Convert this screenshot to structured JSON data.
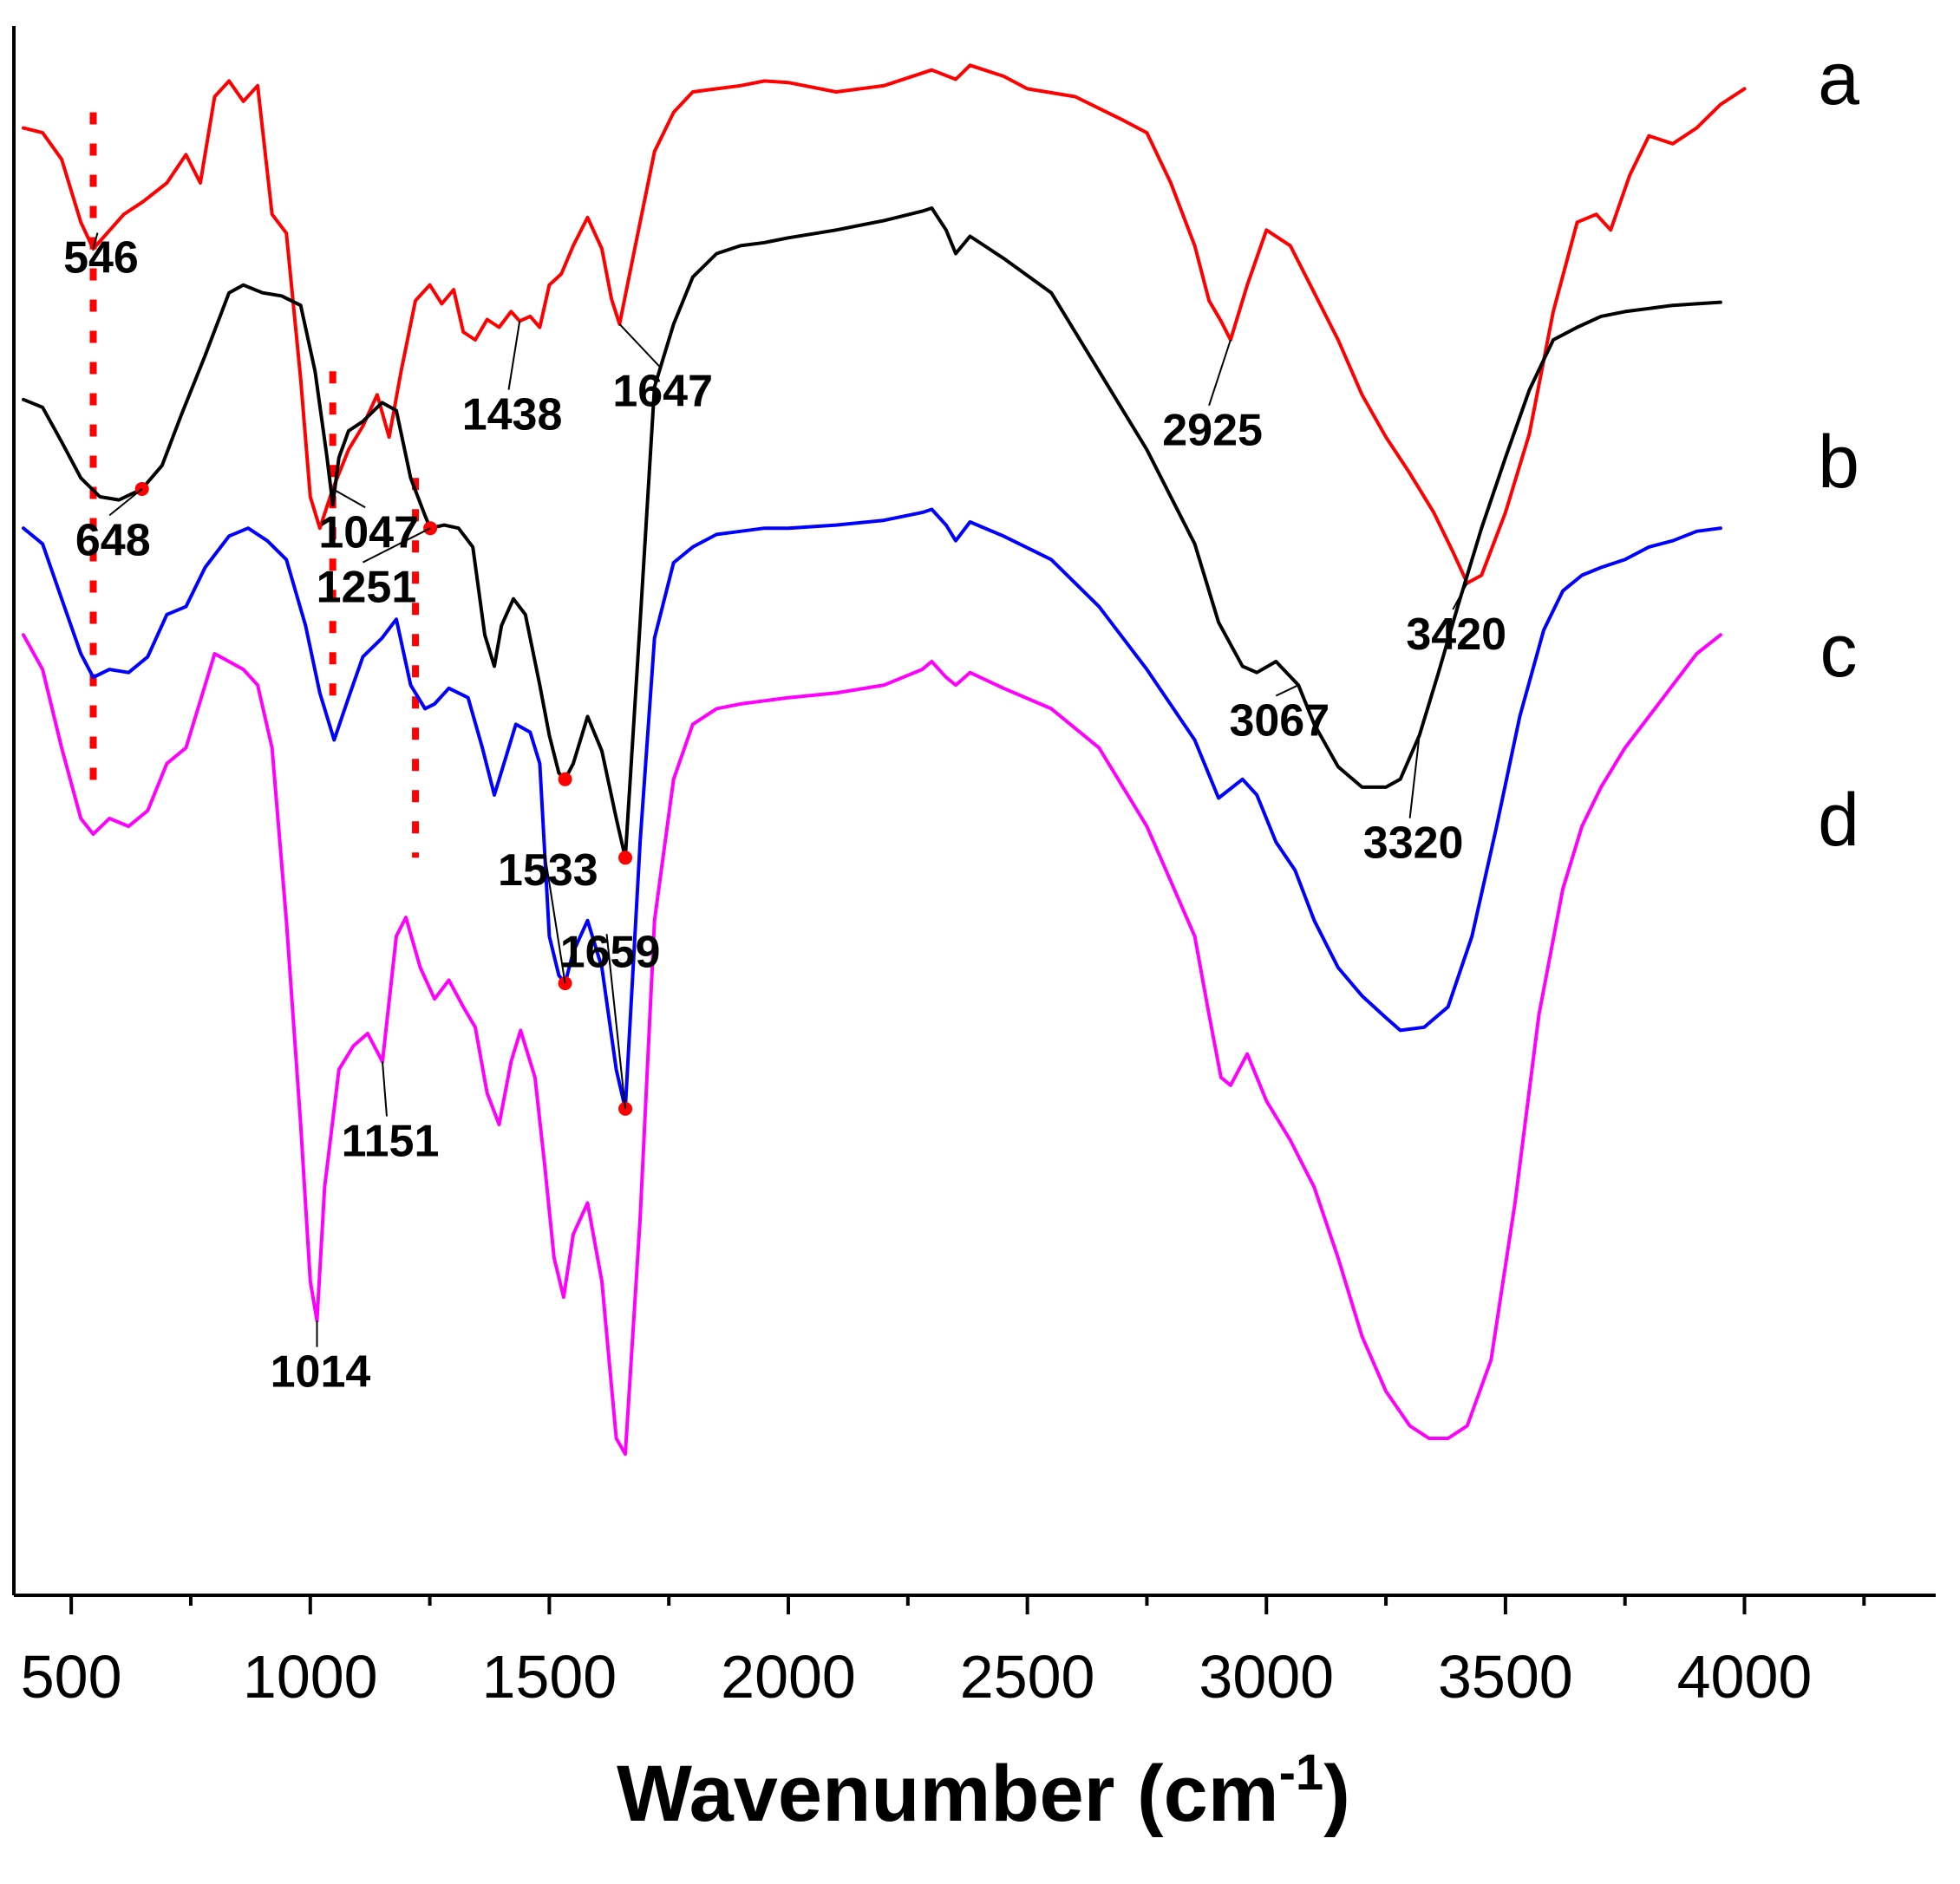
{
  "chart_data": {
    "type": "line",
    "title": "",
    "xlabel": "Wavenumber (cm",
    "xlabel_superscript": "-1",
    "xlabel_close": ")",
    "ylabel": "",
    "xlim": [
      380,
      4400
    ],
    "x_ticks": [
      500,
      1000,
      1500,
      2000,
      2500,
      3000,
      3500,
      4000
    ],
    "x_ticks_minor": [
      750,
      1250,
      1750,
      2250,
      2750,
      3250,
      3750,
      4250
    ],
    "ylim": [
      0,
      1
    ],
    "y_axis_visible": true,
    "y_ticks": [],
    "legend": "series letters at right",
    "series": [
      {
        "name": "a",
        "color": "#ff0000",
        "x": [
          400,
          440,
          480,
          520,
          546,
          575,
          610,
          650,
          700,
          740,
          770,
          800,
          830,
          860,
          890,
          920,
          950,
          980,
          1000,
          1020,
          1047,
          1080,
          1110,
          1140,
          1165,
          1190,
          1220,
          1250,
          1275,
          1300,
          1320,
          1345,
          1370,
          1395,
          1420,
          1438,
          1460,
          1480,
          1500,
          1525,
          1550,
          1580,
          1610,
          1630,
          1647,
          1680,
          1720,
          1760,
          1800,
          1850,
          1900,
          1950,
          2000,
          2100,
          2200,
          2300,
          2350,
          2380,
          2450,
          2500,
          2600,
          2700,
          2750,
          2800,
          2850,
          2880,
          2905,
          2925,
          2960,
          3000,
          3050,
          3100,
          3150,
          3200,
          3250,
          3300,
          3350,
          3390,
          3420,
          3450,
          3500,
          3550,
          3600,
          3650,
          3690,
          3720,
          3760,
          3800,
          3850,
          3900,
          3950,
          4000
        ],
        "y": [
          0.935,
          0.932,
          0.915,
          0.875,
          0.858,
          0.868,
          0.88,
          0.888,
          0.9,
          0.918,
          0.9,
          0.955,
          0.965,
          0.952,
          0.962,
          0.88,
          0.868,
          0.775,
          0.7,
          0.68,
          0.705,
          0.73,
          0.745,
          0.765,
          0.738,
          0.78,
          0.825,
          0.835,
          0.823,
          0.832,
          0.805,
          0.8,
          0.813,
          0.808,
          0.818,
          0.812,
          0.815,
          0.808,
          0.835,
          0.842,
          0.86,
          0.878,
          0.858,
          0.826,
          0.81,
          0.86,
          0.92,
          0.945,
          0.958,
          0.96,
          0.962,
          0.965,
          0.964,
          0.958,
          0.962,
          0.972,
          0.966,
          0.975,
          0.968,
          0.96,
          0.955,
          0.94,
          0.932,
          0.9,
          0.86,
          0.825,
          0.812,
          0.8,
          0.835,
          0.87,
          0.86,
          0.83,
          0.8,
          0.765,
          0.738,
          0.715,
          0.69,
          0.665,
          0.645,
          0.65,
          0.69,
          0.74,
          0.818,
          0.875,
          0.88,
          0.87,
          0.905,
          0.93,
          0.925,
          0.935,
          0.95,
          0.96
        ]
      },
      {
        "name": "b",
        "color": "#000000",
        "x": [
          400,
          440,
          480,
          520,
          560,
          600,
          648,
          690,
          730,
          780,
          830,
          860,
          900,
          940,
          980,
          1010,
          1035,
          1047,
          1060,
          1080,
          1110,
          1150,
          1180,
          1210,
          1240,
          1251,
          1280,
          1310,
          1340,
          1365,
          1385,
          1400,
          1425,
          1450,
          1480,
          1500,
          1520,
          1533,
          1550,
          1580,
          1610,
          1640,
          1659,
          1690,
          1720,
          1760,
          1800,
          1850,
          1900,
          1950,
          2000,
          2100,
          2200,
          2280,
          2300,
          2330,
          2350,
          2380,
          2450,
          2550,
          2650,
          2750,
          2850,
          2900,
          2950,
          2980,
          3020,
          3067,
          3100,
          3150,
          3200,
          3250,
          3280,
          3320,
          3360,
          3400,
          3450,
          3500,
          3550,
          3600,
          3650,
          3700,
          3750,
          3800,
          3850,
          3900,
          3950
        ],
        "y": [
          0.762,
          0.757,
          0.735,
          0.712,
          0.7,
          0.698,
          0.705,
          0.72,
          0.752,
          0.79,
          0.83,
          0.835,
          0.83,
          0.828,
          0.822,
          0.78,
          0.725,
          0.695,
          0.725,
          0.742,
          0.748,
          0.76,
          0.755,
          0.712,
          0.688,
          0.68,
          0.682,
          0.68,
          0.668,
          0.612,
          0.592,
          0.618,
          0.635,
          0.625,
          0.58,
          0.548,
          0.524,
          0.52,
          0.53,
          0.56,
          0.538,
          0.495,
          0.47,
          0.62,
          0.77,
          0.81,
          0.84,
          0.855,
          0.86,
          0.862,
          0.865,
          0.87,
          0.876,
          0.882,
          0.884,
          0.87,
          0.855,
          0.866,
          0.852,
          0.83,
          0.78,
          0.73,
          0.67,
          0.62,
          0.592,
          0.588,
          0.595,
          0.58,
          0.555,
          0.528,
          0.515,
          0.515,
          0.52,
          0.548,
          0.588,
          0.63,
          0.68,
          0.725,
          0.768,
          0.8,
          0.808,
          0.815,
          0.818,
          0.82,
          0.822,
          0.823,
          0.824
        ]
      },
      {
        "name": "c",
        "color": "#0000ff",
        "x": [
          400,
          440,
          480,
          520,
          546,
          580,
          620,
          660,
          700,
          740,
          780,
          830,
          870,
          910,
          950,
          990,
          1020,
          1050,
          1080,
          1110,
          1150,
          1180,
          1210,
          1240,
          1260,
          1290,
          1330,
          1360,
          1385,
          1400,
          1430,
          1460,
          1480,
          1500,
          1520,
          1533,
          1550,
          1580,
          1610,
          1640,
          1659,
          1690,
          1720,
          1760,
          1800,
          1850,
          1900,
          1950,
          2000,
          2100,
          2200,
          2280,
          2300,
          2330,
          2350,
          2380,
          2450,
          2550,
          2650,
          2750,
          2850,
          2900,
          2950,
          2980,
          3020,
          3060,
          3100,
          3150,
          3200,
          3250,
          3280,
          3330,
          3380,
          3430,
          3480,
          3530,
          3580,
          3620,
          3660,
          3700,
          3750,
          3800,
          3850,
          3900,
          3950
        ],
        "y": [
          0.68,
          0.67,
          0.635,
          0.6,
          0.585,
          0.59,
          0.588,
          0.598,
          0.625,
          0.63,
          0.655,
          0.675,
          0.68,
          0.672,
          0.66,
          0.618,
          0.575,
          0.545,
          0.572,
          0.598,
          0.61,
          0.622,
          0.58,
          0.565,
          0.568,
          0.578,
          0.572,
          0.54,
          0.51,
          0.525,
          0.555,
          0.55,
          0.53,
          0.42,
          0.395,
          0.39,
          0.41,
          0.43,
          0.4,
          0.335,
          0.31,
          0.48,
          0.61,
          0.658,
          0.668,
          0.676,
          0.678,
          0.68,
          0.68,
          0.682,
          0.685,
          0.69,
          0.692,
          0.682,
          0.672,
          0.684,
          0.675,
          0.66,
          0.63,
          0.59,
          0.545,
          0.508,
          0.52,
          0.51,
          0.48,
          0.462,
          0.43,
          0.4,
          0.382,
          0.368,
          0.36,
          0.362,
          0.375,
          0.42,
          0.488,
          0.56,
          0.615,
          0.64,
          0.65,
          0.655,
          0.66,
          0.668,
          0.672,
          0.678,
          0.68
        ]
      },
      {
        "name": "d",
        "color": "#ff00ff",
        "x": [
          400,
          440,
          480,
          520,
          546,
          580,
          620,
          660,
          700,
          740,
          770,
          800,
          830,
          860,
          890,
          920,
          950,
          980,
          1000,
          1014,
          1030,
          1060,
          1090,
          1120,
          1151,
          1180,
          1200,
          1230,
          1260,
          1290,
          1320,
          1345,
          1370,
          1395,
          1420,
          1440,
          1470,
          1490,
          1510,
          1530,
          1550,
          1580,
          1610,
          1640,
          1659,
          1690,
          1720,
          1760,
          1800,
          1850,
          1900,
          1950,
          2000,
          2100,
          2200,
          2280,
          2300,
          2330,
          2350,
          2380,
          2450,
          2550,
          2650,
          2750,
          2850,
          2880,
          2905,
          2925,
          2960,
          3000,
          3050,
          3100,
          3150,
          3200,
          3250,
          3300,
          3340,
          3380,
          3420,
          3470,
          3520,
          3570,
          3620,
          3660,
          3700,
          3750,
          3800,
          3850,
          3900,
          3950
        ],
        "y": [
          0.612,
          0.59,
          0.54,
          0.495,
          0.485,
          0.495,
          0.49,
          0.5,
          0.53,
          0.54,
          0.57,
          0.6,
          0.595,
          0.59,
          0.58,
          0.54,
          0.43,
          0.3,
          0.2,
          0.175,
          0.26,
          0.335,
          0.35,
          0.358,
          0.34,
          0.42,
          0.432,
          0.4,
          0.38,
          0.392,
          0.375,
          0.362,
          0.32,
          0.3,
          0.34,
          0.36,
          0.33,
          0.275,
          0.215,
          0.19,
          0.23,
          0.25,
          0.2,
          0.1,
          0.09,
          0.24,
          0.43,
          0.52,
          0.555,
          0.565,
          0.568,
          0.57,
          0.572,
          0.575,
          0.58,
          0.59,
          0.595,
          0.585,
          0.58,
          0.588,
          0.578,
          0.565,
          0.54,
          0.49,
          0.42,
          0.37,
          0.33,
          0.325,
          0.345,
          0.315,
          0.29,
          0.26,
          0.215,
          0.165,
          0.13,
          0.108,
          0.1,
          0.1,
          0.108,
          0.15,
          0.25,
          0.37,
          0.45,
          0.49,
          0.515,
          0.54,
          0.56,
          0.58,
          0.6,
          0.612
        ]
      }
    ],
    "series_letters": [
      "a",
      "b",
      "c",
      "d"
    ],
    "reference_lines": [
      {
        "x": 546,
        "y_from": 0.945,
        "y_to": 0.515
      },
      {
        "x": 1047,
        "y_from": 0.78,
        "y_to": 0.57
      },
      {
        "x": 1220,
        "y_from": 0.712,
        "y_to": 0.47
      }
    ],
    "markers": [
      {
        "x": 648,
        "y": 0.705
      },
      {
        "x": 1251,
        "y": 0.68
      },
      {
        "x": 1533,
        "y": 0.52
      },
      {
        "x": 1659,
        "y": 0.47
      },
      {
        "x": 1533,
        "y": 0.39
      },
      {
        "x": 1659,
        "y": 0.31
      }
    ],
    "annotations": [
      {
        "text": "546",
        "series": "a",
        "x": 546,
        "anchor_x": 555,
        "anchor_y": 0.845
      },
      {
        "text": "1438",
        "series": "a",
        "x": 1438,
        "anchor_x": 1415,
        "anchor_y": 0.745
      },
      {
        "text": "1647",
        "series": "a",
        "x": 1647,
        "anchor_x": 1730,
        "anchor_y": 0.76
      },
      {
        "text": "2925",
        "series": "a",
        "x": 2925,
        "anchor_x": 2880,
        "anchor_y": 0.735
      },
      {
        "text": "3420",
        "series": "a",
        "x": 3420,
        "anchor_x": 3390,
        "anchor_y": 0.605
      },
      {
        "text": "1047",
        "series": "a",
        "x": 1047,
        "anchor_x": 1115,
        "anchor_y": 0.67
      },
      {
        "text": "648",
        "series": "b",
        "x": 648,
        "anchor_x": 580,
        "anchor_y": 0.665
      },
      {
        "text": "1251",
        "series": "b",
        "x": 1251,
        "anchor_x": 1110,
        "anchor_y": 0.635
      },
      {
        "text": "3067",
        "series": "b",
        "x": 3067,
        "anchor_x": 3020,
        "anchor_y": 0.55
      },
      {
        "text": "3320",
        "series": "b",
        "x": 3320,
        "anchor_x": 3300,
        "anchor_y": 0.472
      },
      {
        "text": "1533",
        "series": "c",
        "x": 1533,
        "anchor_x": 1490,
        "anchor_y": 0.48
      },
      {
        "text": "1659",
        "series": "c",
        "x": 1659,
        "anchor_x": 1620,
        "anchor_y": 0.428
      },
      {
        "text": "1151",
        "series": "d",
        "x": 1151,
        "anchor_x": 1160,
        "anchor_y": 0.282
      },
      {
        "text": "1014",
        "series": "d",
        "x": 1014,
        "anchor_x": 1014,
        "anchor_y": 0.135
      }
    ]
  }
}
